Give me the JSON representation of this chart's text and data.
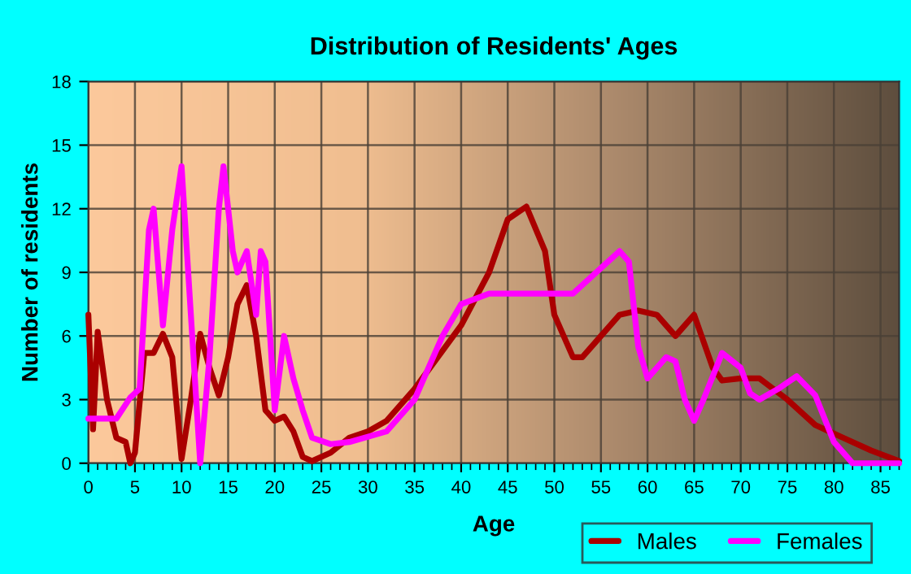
{
  "chart_data": {
    "type": "line",
    "title": "Distribution of Residents' Ages",
    "xlabel": "Age",
    "ylabel": "Number of residents",
    "xlim": [
      0,
      87
    ],
    "xticks": [
      0,
      5,
      10,
      15,
      20,
      25,
      30,
      35,
      40,
      45,
      50,
      55,
      60,
      65,
      70,
      75,
      80,
      85
    ],
    "ylim": [
      0,
      18
    ],
    "yticks": [
      0,
      3,
      6,
      9,
      12,
      15,
      18
    ],
    "grid": true,
    "legend": "bottom right",
    "marker": "none",
    "line_style": "solid",
    "series": [
      {
        "name": "Males",
        "color": "#aa0000",
        "x": [
          0,
          0.5,
          1,
          2,
          3,
          4,
          4.5,
          5,
          6,
          7,
          8,
          9,
          10,
          11,
          12,
          13,
          14,
          15,
          16,
          17,
          18,
          19,
          20,
          21,
          22,
          23,
          24,
          26,
          28,
          30,
          32,
          35,
          40,
          43,
          45,
          47,
          49,
          50,
          52,
          53,
          55,
          57,
          59,
          61,
          63,
          65,
          67,
          68,
          70,
          72,
          75,
          78,
          81,
          84,
          87
        ],
        "values": [
          7,
          1.6,
          6.2,
          3,
          1.2,
          1,
          0,
          0.5,
          5.2,
          5.2,
          6.1,
          5,
          0.2,
          3,
          6.1,
          4.5,
          3.2,
          5,
          7.5,
          8.4,
          6,
          2.5,
          2,
          2.2,
          1.5,
          0.3,
          0.1,
          0.5,
          1.2,
          1.5,
          2,
          3.5,
          6.5,
          9,
          11.5,
          12.1,
          10,
          7,
          5,
          5,
          6,
          7,
          7.2,
          7,
          6,
          7,
          4.5,
          3.9,
          4,
          4,
          3,
          1.8,
          1.2,
          0.6,
          0.1
        ]
      },
      {
        "name": "Females",
        "color": "#ff00ff",
        "x": [
          0,
          3,
          4.5,
          5.5,
          6.5,
          7,
          8,
          9,
          10,
          11,
          12,
          13,
          14,
          14.5,
          15.5,
          16,
          17,
          18,
          18.5,
          19,
          20,
          21,
          22,
          23,
          24,
          26,
          28,
          32,
          35,
          38,
          40,
          43,
          48,
          52,
          55,
          57,
          58,
          59,
          60,
          62,
          63,
          64,
          65,
          66,
          68,
          70,
          71,
          72,
          74,
          76,
          78,
          80,
          82,
          87
        ],
        "values": [
          2.1,
          2.1,
          3.1,
          3.5,
          11,
          12,
          6.5,
          11,
          14,
          7,
          0,
          5,
          12,
          14,
          10,
          9,
          10,
          7,
          10,
          9.5,
          2.5,
          6,
          4,
          2.5,
          1.2,
          0.9,
          1,
          1.5,
          3,
          6,
          7.5,
          8,
          8,
          8,
          9.2,
          10,
          9.5,
          5.5,
          4,
          5,
          4.8,
          3,
          2,
          3,
          5.2,
          4.5,
          3.3,
          3,
          3.5,
          4.1,
          3.2,
          1,
          0,
          0
        ]
      }
    ]
  }
}
